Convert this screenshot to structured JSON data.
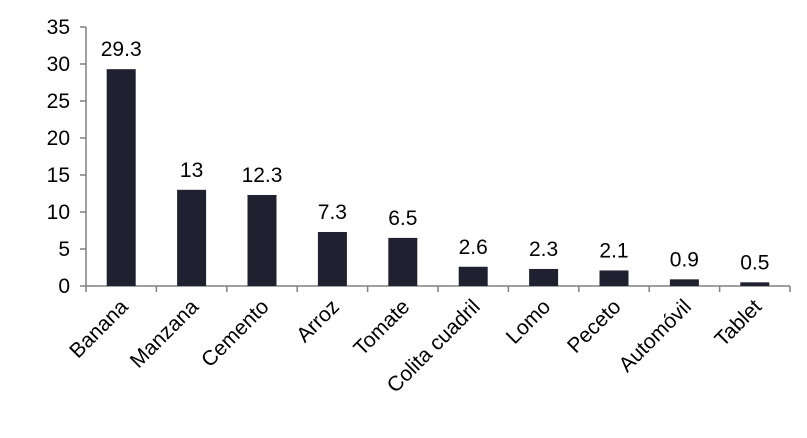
{
  "chart_data": {
    "type": "bar",
    "title": "",
    "xlabel": "",
    "ylabel": "",
    "categories": [
      "Banana",
      "Manzana",
      "Cemento",
      "Arroz",
      "Tomate",
      "Colita cuadril",
      "Lomo",
      "Peceto",
      "Automóvil",
      "Tablet"
    ],
    "values": [
      29.3,
      13,
      12.3,
      7.3,
      6.5,
      2.6,
      2.3,
      2.1,
      0.9,
      0.5
    ],
    "data_labels": [
      "29.3",
      "13",
      "12.3",
      "7.3",
      "6.5",
      "2.6",
      "2.3",
      "2.1",
      "0.9",
      "0.5"
    ],
    "ylim": [
      0,
      35
    ],
    "yticks": [
      0,
      5,
      10,
      15,
      20,
      25,
      30,
      35
    ],
    "ytick_labels": [
      "0",
      "5",
      "10",
      "15",
      "20",
      "25",
      "30",
      "35"
    ],
    "grid": false,
    "legend": "none",
    "bar_color": "#1f2130",
    "axis_color": "#808080"
  }
}
